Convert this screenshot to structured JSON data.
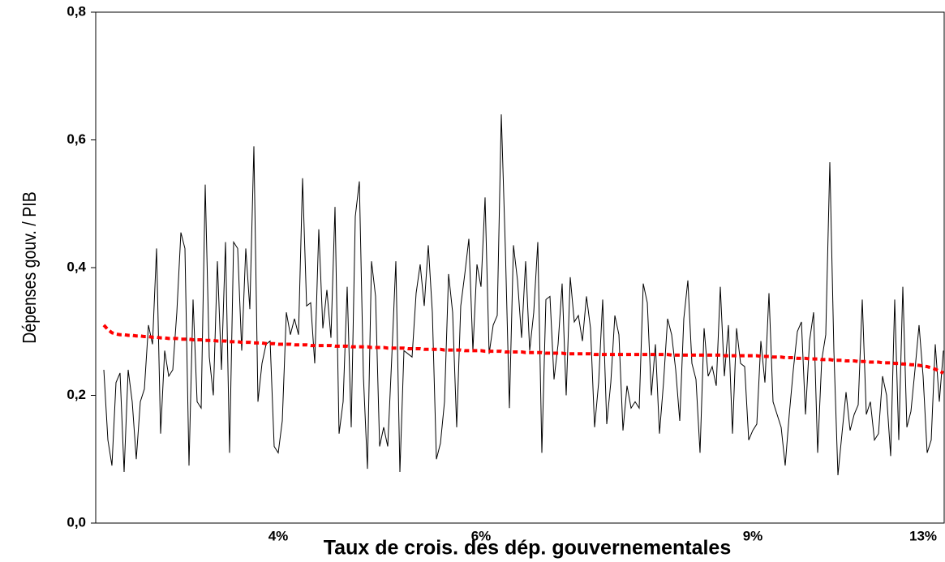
{
  "chart_data": {
    "type": "line",
    "x_label": "Taux de crois. des dép. gouvernementales",
    "y_label": "Dépenses gouv. / PIB",
    "categories": [
      null,
      null,
      null,
      null,
      null,
      null,
      null,
      null,
      null,
      null,
      null,
      null,
      null,
      null,
      null,
      null,
      null,
      null,
      null,
      null,
      null,
      null,
      null,
      null,
      null,
      null,
      null,
      null,
      null,
      null,
      null,
      null,
      null,
      null,
      null,
      null,
      null,
      null,
      null,
      null,
      null,
      null,
      null,
      "4%",
      null,
      null,
      null,
      null,
      null,
      null,
      null,
      null,
      null,
      null,
      null,
      null,
      null,
      null,
      null,
      null,
      null,
      null,
      null,
      null,
      null,
      null,
      null,
      null,
      null,
      null,
      null,
      null,
      null,
      null,
      null,
      null,
      null,
      null,
      null,
      null,
      null,
      null,
      null,
      null,
      null,
      null,
      null,
      null,
      null,
      null,
      null,
      null,
      null,
      "6%",
      null,
      null,
      null,
      null,
      null,
      null,
      null,
      null,
      null,
      null,
      null,
      null,
      null,
      null,
      null,
      null,
      null,
      null,
      null,
      null,
      null,
      null,
      null,
      null,
      null,
      null,
      null,
      null,
      null,
      null,
      null,
      null,
      null,
      null,
      null,
      null,
      null,
      null,
      null,
      null,
      null,
      null,
      null,
      null,
      null,
      null,
      null,
      null,
      null,
      null,
      null,
      null,
      null,
      null,
      null,
      null,
      null,
      null,
      null,
      null,
      null,
      null,
      null,
      null,
      null,
      null,
      "9%",
      null,
      null,
      null,
      null,
      null,
      null,
      null,
      null,
      null,
      null,
      null,
      null,
      null,
      null,
      null,
      null,
      null,
      null,
      null,
      null,
      null,
      null,
      null,
      null,
      null,
      null,
      null,
      null,
      null,
      null,
      null,
      null,
      null,
      null,
      null,
      null,
      null,
      null,
      null,
      null,
      null,
      "13%",
      null,
      null,
      null,
      null,
      null
    ],
    "series": [
      {
        "color": "#000000",
        "values": [
          0.24,
          0.13,
          0.09,
          0.22,
          0.235,
          0.08,
          0.24,
          0.19,
          0.1,
          0.19,
          0.21,
          0.31,
          0.28,
          0.43,
          0.14,
          0.27,
          0.23,
          0.24,
          0.33,
          0.455,
          0.43,
          0.09,
          0.35,
          0.19,
          0.18,
          0.53,
          0.26,
          0.2,
          0.41,
          0.24,
          0.44,
          0.11,
          0.44,
          0.43,
          0.27,
          0.43,
          0.335,
          0.59,
          0.19,
          0.25,
          0.28,
          0.285,
          0.12,
          0.11,
          0.16,
          0.33,
          0.295,
          0.32,
          0.295,
          0.54,
          0.34,
          0.345,
          0.25,
          0.46,
          0.305,
          0.365,
          0.29,
          0.495,
          0.14,
          0.19,
          0.37,
          0.15,
          0.48,
          0.535,
          0.23,
          0.085,
          0.41,
          0.355,
          0.12,
          0.15,
          0.12,
          0.26,
          0.41,
          0.08,
          0.27,
          0.265,
          0.26,
          0.36,
          0.405,
          0.34,
          0.435,
          0.33,
          0.1,
          0.125,
          0.19,
          0.39,
          0.33,
          0.15,
          0.34,
          0.39,
          0.445,
          0.27,
          0.405,
          0.37,
          0.51,
          0.265,
          0.31,
          0.325,
          0.64,
          0.43,
          0.18,
          0.435,
          0.38,
          0.29,
          0.41,
          0.27,
          0.33,
          0.44,
          0.11,
          0.35,
          0.355,
          0.225,
          0.28,
          0.375,
          0.2,
          0.385,
          0.315,
          0.325,
          0.285,
          0.355,
          0.305,
          0.15,
          0.22,
          0.35,
          0.155,
          0.22,
          0.325,
          0.295,
          0.145,
          0.215,
          0.18,
          0.19,
          0.18,
          0.375,
          0.345,
          0.2,
          0.28,
          0.14,
          0.22,
          0.32,
          0.295,
          0.24,
          0.16,
          0.32,
          0.38,
          0.25,
          0.225,
          0.11,
          0.305,
          0.23,
          0.245,
          0.215,
          0.37,
          0.23,
          0.31,
          0.14,
          0.305,
          0.25,
          0.245,
          0.13,
          0.145,
          0.155,
          0.285,
          0.22,
          0.36,
          0.19,
          0.17,
          0.15,
          0.09,
          0.17,
          0.24,
          0.3,
          0.315,
          0.17,
          0.285,
          0.33,
          0.11,
          0.255,
          0.295,
          0.565,
          0.27,
          0.075,
          0.14,
          0.205,
          0.145,
          0.17,
          0.185,
          0.35,
          0.17,
          0.19,
          0.13,
          0.14,
          0.23,
          0.2,
          0.105,
          0.35,
          0.13,
          0.37,
          0.15,
          0.175,
          0.24,
          0.31,
          0.23,
          0.11,
          0.13,
          0.28,
          0.19,
          0.27
        ]
      },
      {
        "color": "#ff0000",
        "dashed": true,
        "values": [
          0.31,
          0.303,
          0.298,
          0.296,
          0.295,
          0.295,
          0.294,
          0.294,
          0.293,
          0.293,
          0.292,
          0.292,
          0.291,
          0.291,
          0.29,
          0.29,
          0.289,
          0.289,
          0.289,
          0.288,
          0.288,
          0.288,
          0.287,
          0.287,
          0.287,
          0.286,
          0.286,
          0.286,
          0.285,
          0.285,
          0.285,
          0.284,
          0.284,
          0.284,
          0.283,
          0.283,
          0.283,
          0.282,
          0.282,
          0.282,
          0.281,
          0.281,
          0.281,
          0.28,
          0.28,
          0.28,
          0.28,
          0.279,
          0.279,
          0.279,
          0.279,
          0.278,
          0.278,
          0.278,
          0.278,
          0.278,
          0.278,
          0.277,
          0.277,
          0.277,
          0.277,
          0.276,
          0.276,
          0.276,
          0.276,
          0.276,
          0.275,
          0.275,
          0.275,
          0.275,
          0.274,
          0.274,
          0.274,
          0.274,
          0.274,
          0.273,
          0.273,
          0.273,
          0.273,
          0.272,
          0.272,
          0.272,
          0.272,
          0.272,
          0.271,
          0.271,
          0.271,
          0.271,
          0.271,
          0.27,
          0.27,
          0.27,
          0.27,
          0.27,
          0.269,
          0.269,
          0.269,
          0.269,
          0.269,
          0.268,
          0.268,
          0.268,
          0.268,
          0.268,
          0.267,
          0.267,
          0.267,
          0.267,
          0.267,
          0.266,
          0.266,
          0.266,
          0.266,
          0.266,
          0.265,
          0.265,
          0.265,
          0.265,
          0.265,
          0.265,
          0.265,
          0.264,
          0.264,
          0.264,
          0.264,
          0.264,
          0.264,
          0.264,
          0.264,
          0.264,
          0.264,
          0.264,
          0.264,
          0.264,
          0.264,
          0.264,
          0.264,
          0.264,
          0.264,
          0.264,
          0.263,
          0.263,
          0.263,
          0.263,
          0.263,
          0.263,
          0.263,
          0.263,
          0.263,
          0.263,
          0.263,
          0.263,
          0.263,
          0.262,
          0.262,
          0.262,
          0.262,
          0.262,
          0.262,
          0.262,
          0.262,
          0.262,
          0.261,
          0.261,
          0.261,
          0.26,
          0.26,
          0.26,
          0.259,
          0.259,
          0.259,
          0.258,
          0.258,
          0.258,
          0.257,
          0.257,
          0.257,
          0.256,
          0.256,
          0.256,
          0.255,
          0.255,
          0.255,
          0.254,
          0.254,
          0.254,
          0.253,
          0.253,
          0.253,
          0.252,
          0.252,
          0.252,
          0.251,
          0.251,
          0.251,
          0.25,
          0.25,
          0.249,
          0.249,
          0.248,
          0.248,
          0.247,
          0.246,
          0.245,
          0.243,
          0.241,
          0.238,
          0.235
        ]
      }
    ],
    "ylim": [
      0,
      0.8
    ],
    "yticks": [
      {
        "value": 0,
        "label": "0,0"
      },
      {
        "value": 0.2,
        "label": "0,2"
      },
      {
        "value": 0.4,
        "label": "0,4"
      },
      {
        "value": 0.6,
        "label": "0,6"
      },
      {
        "value": 0.8,
        "label": "0,8"
      }
    ]
  }
}
